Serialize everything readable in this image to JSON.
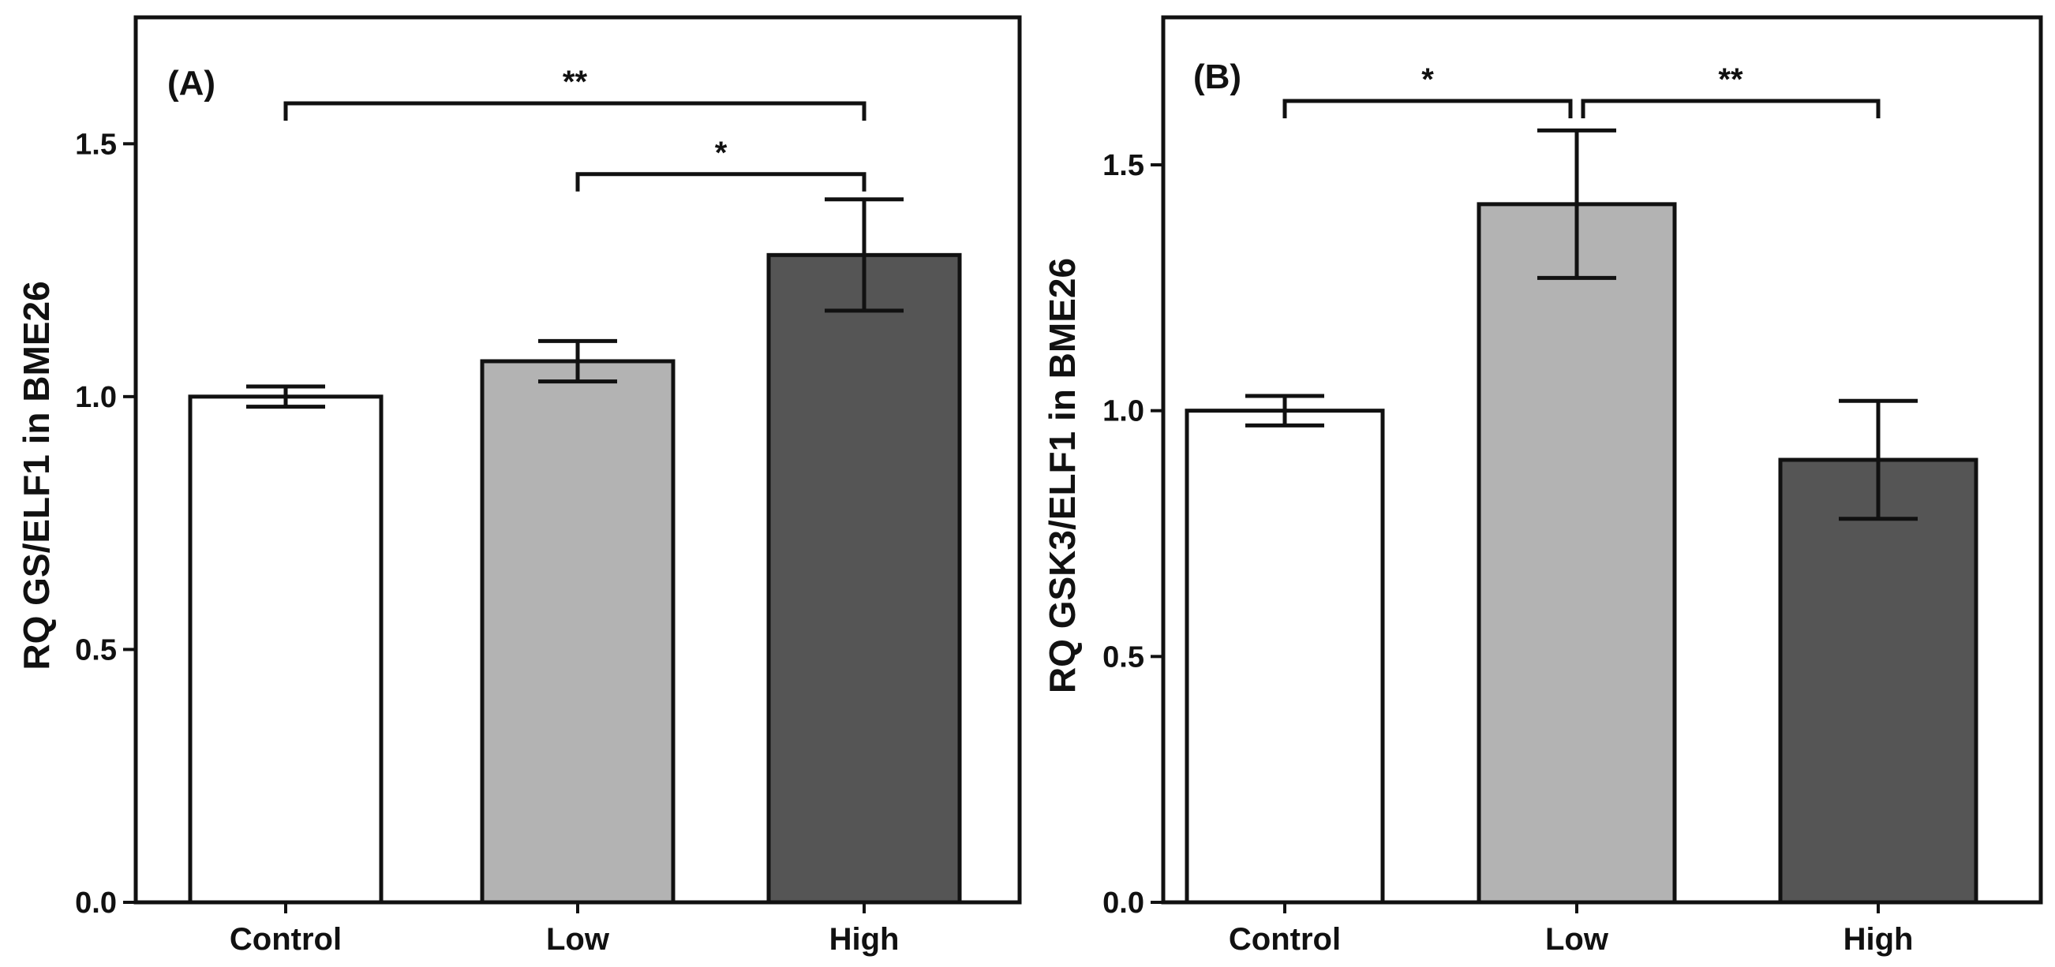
{
  "chart_data": [
    {
      "type": "bar",
      "panel_label": "(A)",
      "categories": [
        "Control",
        "Low",
        "High"
      ],
      "values": [
        1.0,
        1.07,
        1.28
      ],
      "errors": [
        0.02,
        0.04,
        0.11
      ],
      "colors": [
        "#ffffff",
        "#b3b3b3",
        "#555555"
      ],
      "ylabel": "RQ GS/ELF1 in BME26",
      "xlabel": "",
      "ylim": [
        0,
        1.75
      ],
      "yticks": [
        "0.0",
        "0.5",
        "1.0",
        "1.5"
      ],
      "significance": [
        {
          "from": 0,
          "to": 2,
          "label": "**",
          "y": 1.58
        },
        {
          "from": 1,
          "to": 2,
          "label": "*",
          "y": 1.44
        }
      ]
    },
    {
      "type": "bar",
      "panel_label": "(B)",
      "categories": [
        "Control",
        "Low",
        "High"
      ],
      "values": [
        1.0,
        1.42,
        0.9
      ],
      "errors": [
        0.03,
        0.15,
        0.12
      ],
      "colors": [
        "#ffffff",
        "#b3b3b3",
        "#555555"
      ],
      "ylabel": "RQ GSK3/ELF1 in BME26",
      "xlabel": "",
      "ylim": [
        0,
        1.8
      ],
      "yticks": [
        "0.0",
        "0.5",
        "1.0",
        "1.5"
      ],
      "significance": [
        {
          "from": 0,
          "to": 1,
          "label": "*",
          "y": 1.63
        },
        {
          "from": 1,
          "to": 2,
          "label": "**",
          "y": 1.63
        }
      ]
    }
  ]
}
